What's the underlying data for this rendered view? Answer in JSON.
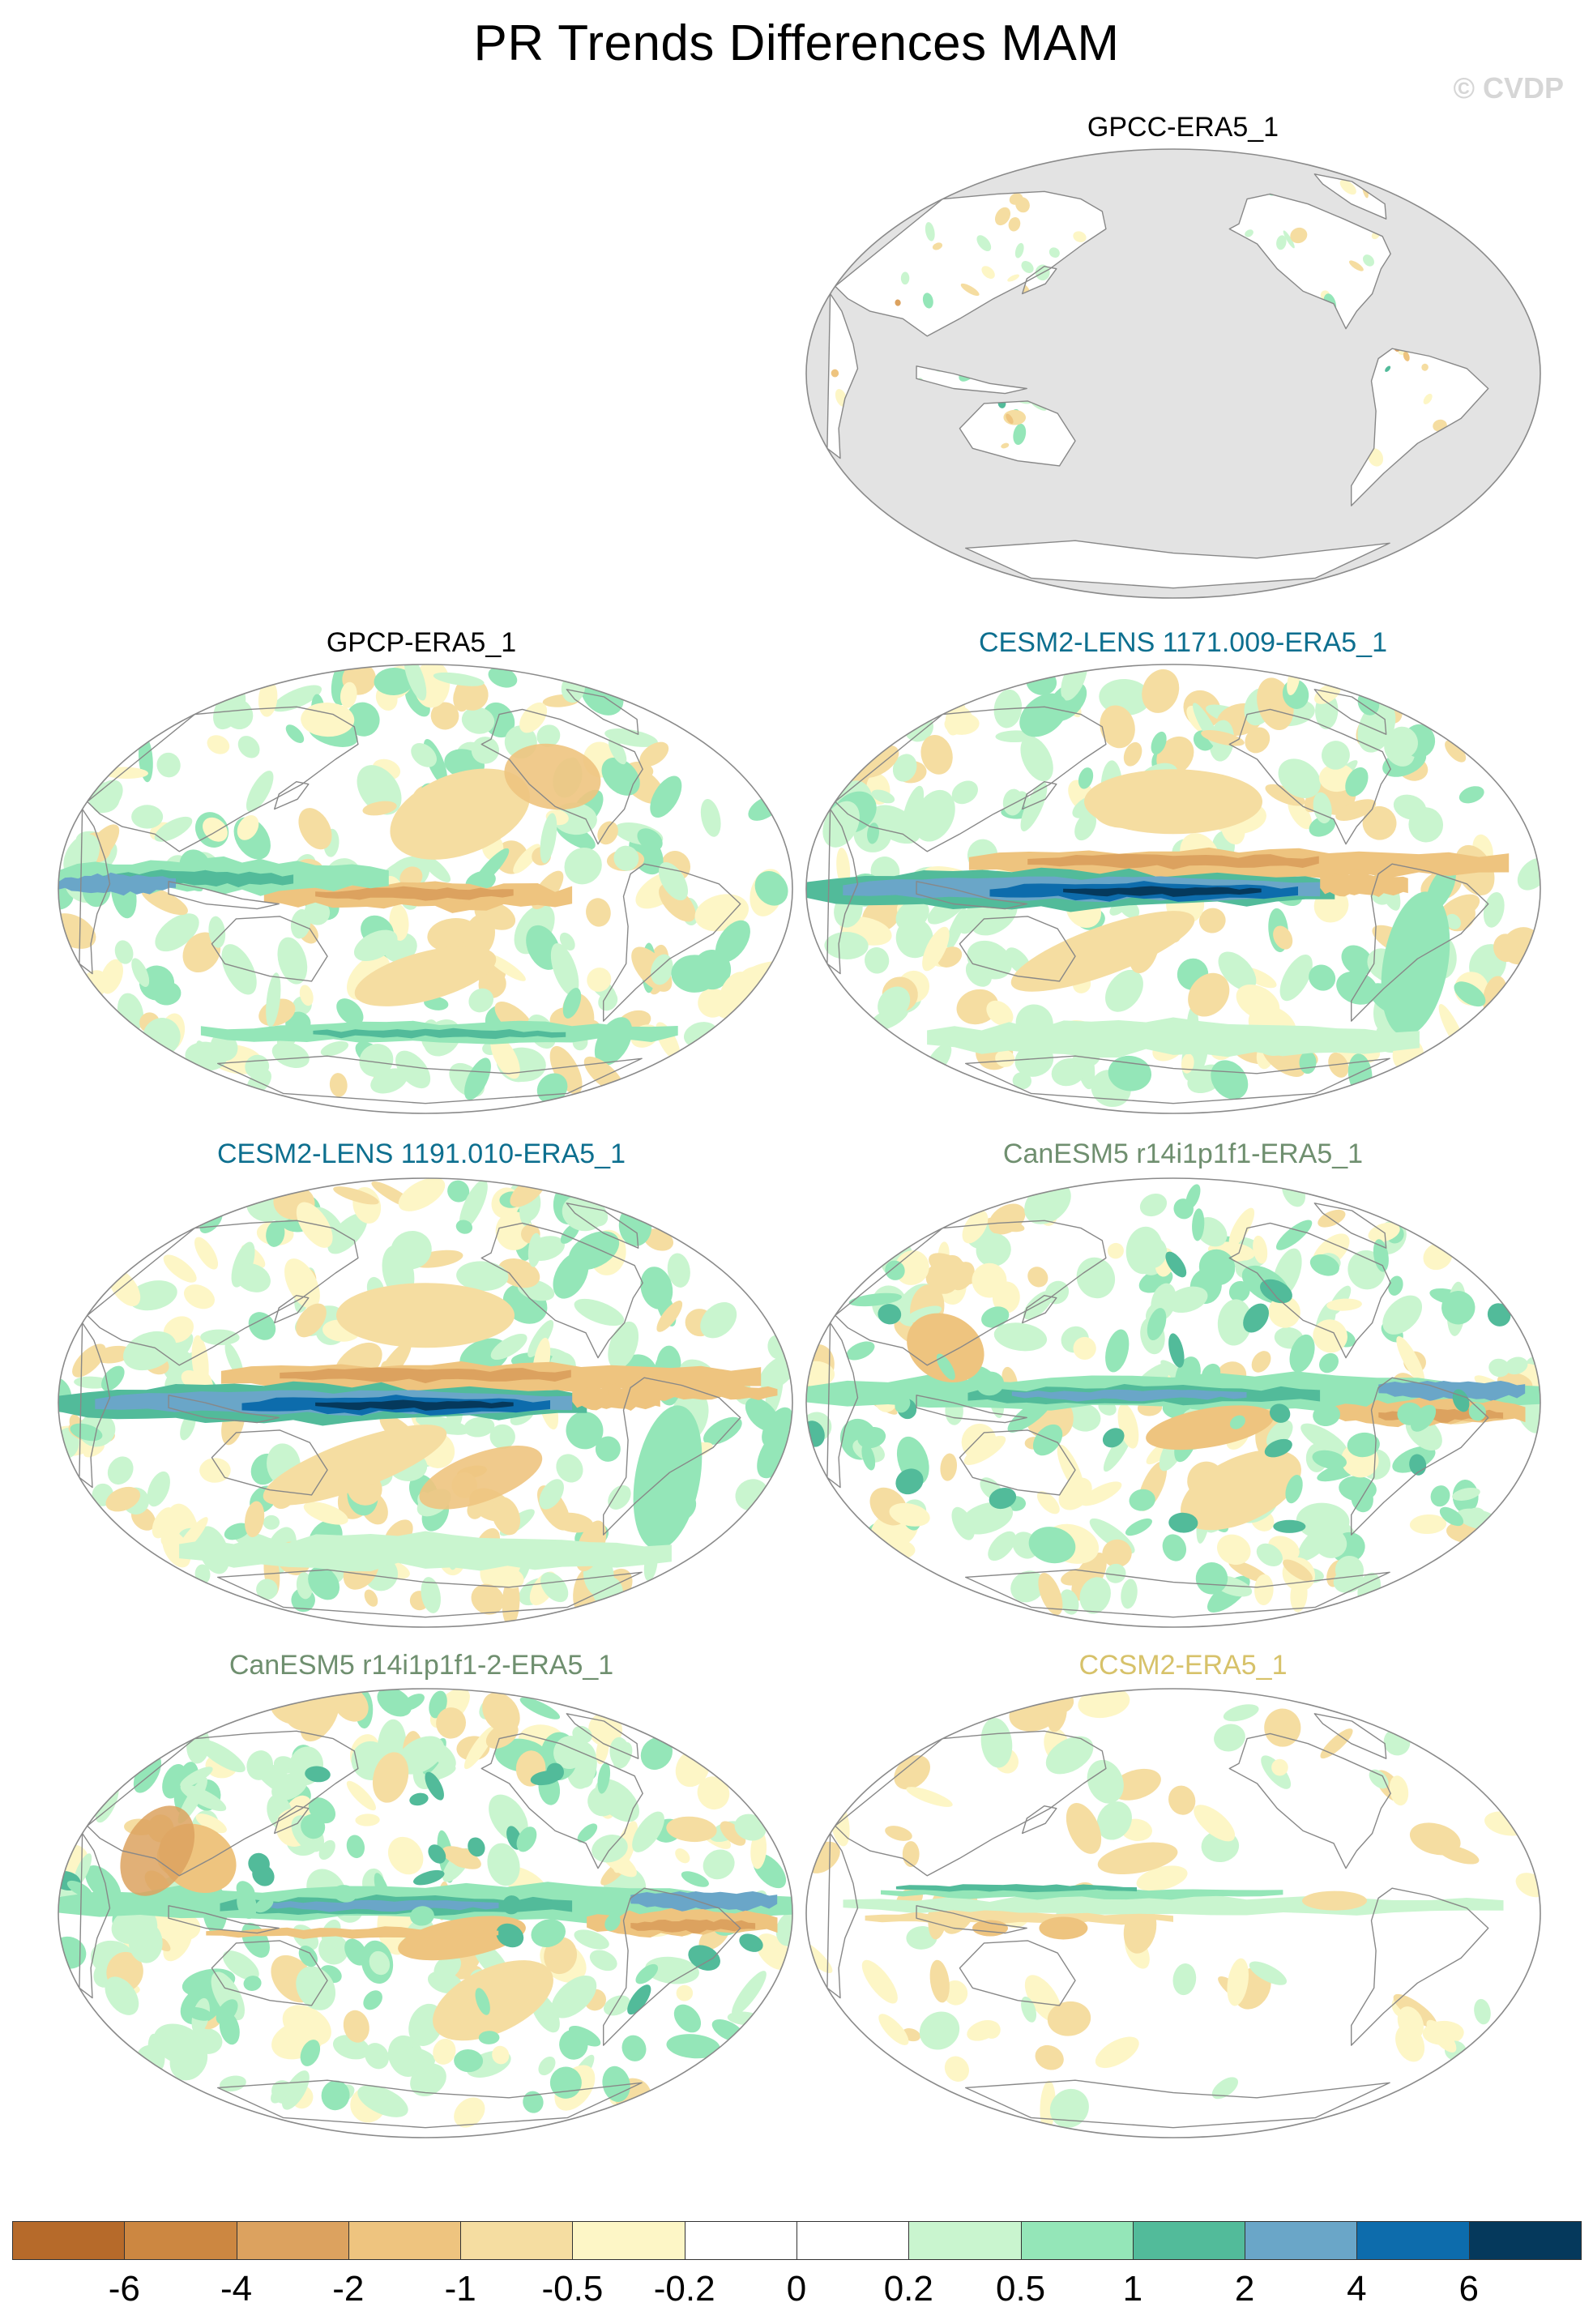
{
  "title": "PR Trends Differences MAM",
  "watermark": "© CVDP",
  "panels": [
    {
      "title": "GPCC-ERA5_1",
      "title_color": "#000000",
      "style": "land_only"
    },
    {
      "title": "GPCP-ERA5_1",
      "title_color": "#000000",
      "style": "gpcp"
    },
    {
      "title": "CESM2-LENS 1171.009-ERA5_1",
      "title_color": "#0d6f8f",
      "style": "cesm"
    },
    {
      "title": "CESM2-LENS 1191.010-ERA5_1",
      "title_color": "#0d6f8f",
      "style": "cesm2"
    },
    {
      "title": "CanESM5 r14i1p1f1-ERA5_1",
      "title_color": "#6f8f6f",
      "style": "canesm"
    },
    {
      "title": "CanESM5 r14i1p1f1-2-ERA5_1",
      "title_color": "#6f8f6f",
      "style": "canesm2"
    },
    {
      "title": "CCSM2-ERA5_1",
      "title_color": "#d7c26a",
      "style": "ccsm"
    }
  ],
  "colorbar": {
    "colors": [
      "#b66a2a",
      "#cc8741",
      "#dca25f",
      "#eec47f",
      "#f5dda1",
      "#fdf6c6",
      "#ffffff",
      "#ffffff",
      "#c9f5cf",
      "#94e6b8",
      "#52bb9a",
      "#6aa6c8",
      "#0d6cac",
      "#05395c"
    ],
    "labels": [
      "-6",
      "-4",
      "-2",
      "-1",
      "-0.5",
      "-0.2",
      "0",
      "0.2",
      "0.5",
      "1",
      "2",
      "4",
      "6"
    ],
    "palette": {
      "brown_dark": "#cc8741",
      "brown": "#dca25f",
      "tan": "#eec47f",
      "tan_light": "#f5dda1",
      "cream": "#fdf6c6",
      "green_light": "#c9f5cf",
      "green": "#94e6b8",
      "teal": "#52bb9a",
      "blue_light": "#6aa6c8",
      "blue": "#0d6cac",
      "navy": "#05395c",
      "missing": "#e3e3e3",
      "coast": "#888888"
    }
  }
}
